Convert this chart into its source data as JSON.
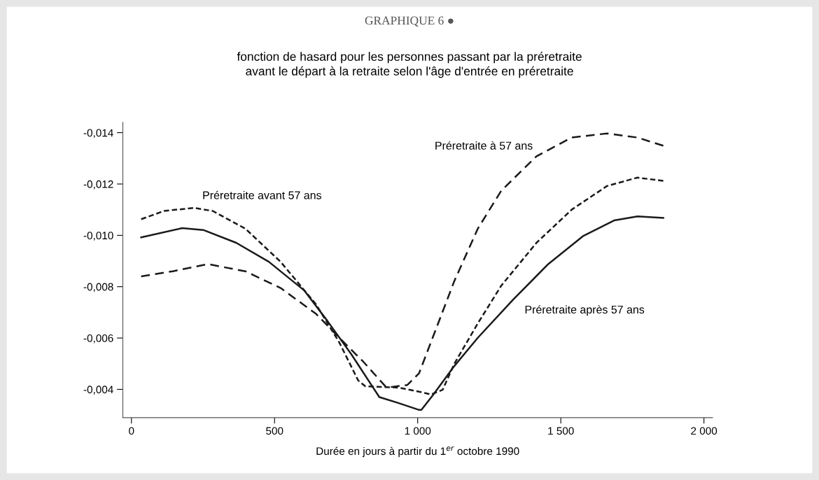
{
  "chart_data": {
    "type": "line",
    "title": "GRAPHIQUE 6 ●",
    "subtitle": "fonction de hasard pour les personnes passant par la préretraite\navant le départ à la retraite selon l'âge d'entrée en préretraite",
    "xlabel": "Durée en jours à partir du 1$^{er}$ octobre 1990",
    "xlim": [
      -30,
      2030
    ],
    "xticks": [
      0,
      500,
      {
        "value": 1000,
        "label": "1 000"
      },
      {
        "value": 1500,
        "label": "1 500"
      },
      {
        "value": 2000,
        "label": "2 000"
      }
    ],
    "ylim": [
      -0.0029,
      -0.0144
    ],
    "yticks": [
      {
        "value": -0.014,
        "label": "-0,014"
      },
      {
        "value": -0.012,
        "label": "-0,012"
      },
      {
        "value": -0.01,
        "label": "-0,010"
      },
      {
        "value": -0.008,
        "label": "-0,008"
      },
      {
        "value": -0.006,
        "label": "-0,006"
      },
      {
        "value": -0.004,
        "label": "-0,004"
      }
    ],
    "grid": false,
    "legend": false,
    "marker": "none",
    "series": [
      {
        "name": "Préretraite après 57 ans",
        "color": "#1a1a1a",
        "line_style": "solid",
        "x": [
          34,
          177,
          251,
          366,
          480,
          603,
          685,
          768,
          833,
          866,
          932,
          1005,
          1013,
          1055,
          1128,
          1210,
          1333,
          1456,
          1579,
          1686,
          1768,
          1858
        ],
        "values": [
          -0.00992,
          -0.01028,
          -0.01021,
          -0.00971,
          -0.00897,
          -0.00786,
          -0.00666,
          -0.00537,
          -0.00426,
          -0.0037,
          -0.00347,
          -0.0032,
          -0.0032,
          -0.0038,
          -0.00491,
          -0.00601,
          -0.00749,
          -0.00888,
          -0.00998,
          -0.01058,
          -0.01074,
          -0.01068
        ]
      },
      {
        "name": "Préretraite avant 57 ans",
        "color": "#1a1a1a",
        "line_style": "dotted",
        "x": [
          34,
          114,
          218,
          284,
          398,
          521,
          645,
          726,
          792,
          817,
          932,
          1013,
          1046,
          1087,
          1128,
          1210,
          1292,
          1415,
          1538,
          1661,
          1768,
          1858
        ],
        "values": [
          -0.01063,
          -0.01095,
          -0.01107,
          -0.01095,
          -0.01026,
          -0.00897,
          -0.00731,
          -0.00583,
          -0.00435,
          -0.00412,
          -0.00407,
          -0.00389,
          -0.0038,
          -0.00398,
          -0.005,
          -0.00657,
          -0.00804,
          -0.00971,
          -0.011,
          -0.01192,
          -0.01225,
          -0.01212
        ]
      },
      {
        "name": "Préretraite à 57 ans",
        "color": "#1a1a1a",
        "line_style": "dashed",
        "x": [
          34,
          144,
          267,
          398,
          521,
          645,
          726,
          809,
          891,
          964,
          1005,
          1046,
          1128,
          1210,
          1292,
          1415,
          1538,
          1661,
          1768,
          1858
        ],
        "values": [
          -0.0084,
          -0.0086,
          -0.00888,
          -0.0086,
          -0.00795,
          -0.00694,
          -0.00601,
          -0.00509,
          -0.00407,
          -0.00417,
          -0.00463,
          -0.00583,
          -0.00822,
          -0.01026,
          -0.01174,
          -0.01308,
          -0.01381,
          -0.01397,
          -0.01381,
          -0.01349
        ]
      }
    ]
  }
}
